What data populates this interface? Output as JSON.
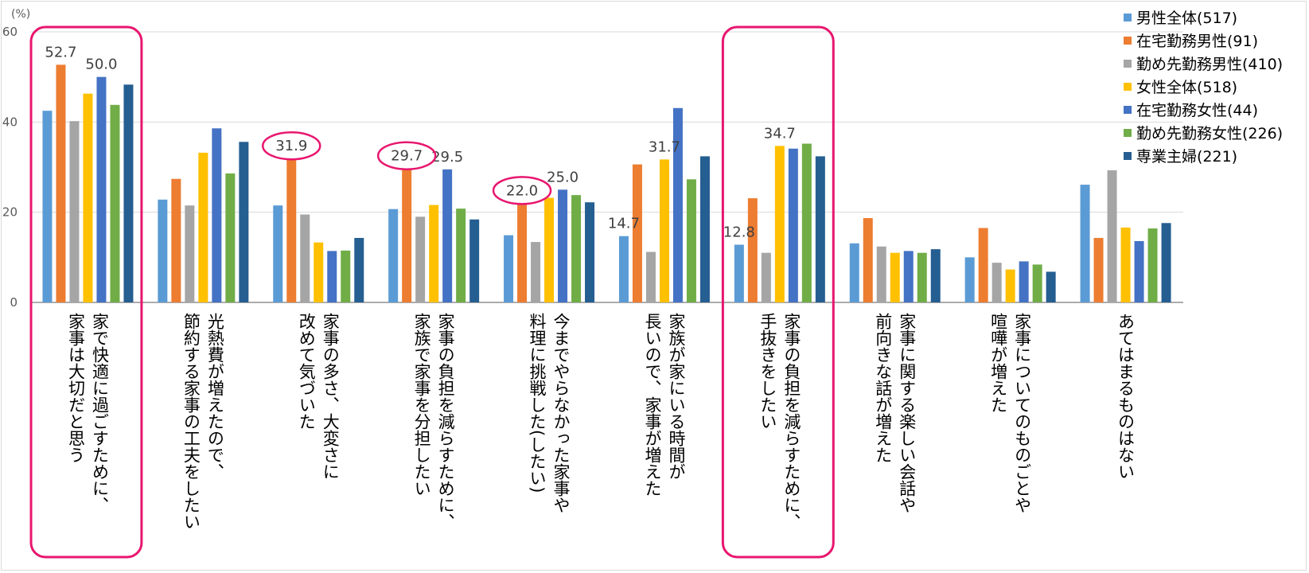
{
  "chart_data": {
    "type": "bar",
    "unit_label": "(%)",
    "ylim": [
      0,
      60
    ],
    "yticks": [
      0,
      20,
      40,
      60
    ],
    "grid": true,
    "legend_position": "top-right",
    "categories": [
      [
        "家で快適に過ごすために、",
        "家事は大切だと思う"
      ],
      [
        "光熱費が増えたので、",
        "節約する家事の工夫をしたい"
      ],
      [
        "家事の多さ、大変さに",
        "改めて気づいた"
      ],
      [
        "家事の負担を減らすために、",
        "家族で家事を分担したい"
      ],
      [
        "今までやらなかった家事や",
        "料理に挑戦した(したい)"
      ],
      [
        "家族が家にいる時間が",
        "長いので、家事が増えた"
      ],
      [
        "家事の負担を減らすために、",
        "手抜きをしたい"
      ],
      [
        "家事に関する楽しい会話や",
        "前向きな話が増えた"
      ],
      [
        "家事についてのものごとや",
        "喧嘩が増えた"
      ],
      [
        "あてはまるものはない"
      ]
    ],
    "series": [
      {
        "name": "男性全体(517)",
        "color": "#5B9BD5",
        "values": [
          42.5,
          22.8,
          21.5,
          20.7,
          14.9,
          14.7,
          12.8,
          13.1,
          10.0,
          26.1
        ]
      },
      {
        "name": "在宅勤務男性(91)",
        "color": "#ED7D31",
        "values": [
          52.7,
          27.4,
          31.9,
          29.7,
          22.0,
          30.6,
          23.1,
          18.7,
          16.5,
          14.3
        ]
      },
      {
        "name": "勤め先勤務男性(410)",
        "color": "#A5A5A5",
        "values": [
          40.2,
          21.5,
          19.5,
          19.0,
          13.4,
          11.2,
          11.0,
          12.4,
          8.8,
          29.3
        ]
      },
      {
        "name": "女性全体(518)",
        "color": "#FFC000",
        "values": [
          46.3,
          33.2,
          13.3,
          21.6,
          23.2,
          31.7,
          34.7,
          11.0,
          7.3,
          16.6
        ]
      },
      {
        "name": "在宅勤務女性(44)",
        "color": "#4472C4",
        "values": [
          50.0,
          38.6,
          11.4,
          29.5,
          25.0,
          43.1,
          34.1,
          11.4,
          9.1,
          13.6
        ]
      },
      {
        "name": "勤め先勤務女性(226)",
        "color": "#70AD47",
        "values": [
          43.8,
          28.6,
          11.5,
          20.8,
          23.8,
          27.3,
          35.2,
          11.0,
          8.4,
          16.4
        ]
      },
      {
        "name": "専業主婦(221)",
        "color": "#255E91",
        "values": [
          48.3,
          35.6,
          14.3,
          18.4,
          22.2,
          32.4,
          32.4,
          11.8,
          6.8,
          17.6
        ]
      }
    ],
    "data_labels": [
      {
        "category": 0,
        "series": 1,
        "text": "52.7"
      },
      {
        "category": 0,
        "series": 4,
        "text": "50.0"
      },
      {
        "category": 2,
        "series": 1,
        "text": "31.9"
      },
      {
        "category": 3,
        "series": 1,
        "text": "29.7"
      },
      {
        "category": 3,
        "series": 4,
        "text": "29.5"
      },
      {
        "category": 4,
        "series": 1,
        "text": "22.0"
      },
      {
        "category": 4,
        "series": 4,
        "text": "25.0"
      },
      {
        "category": 5,
        "series": 0,
        "text": "14.7"
      },
      {
        "category": 5,
        "series": 3,
        "text": "31.7"
      },
      {
        "category": 6,
        "series": 0,
        "text": "12.8"
      },
      {
        "category": 6,
        "series": 3,
        "text": "34.7"
      }
    ],
    "highlight_boxes": [
      0,
      6
    ],
    "highlight_circles": [
      {
        "category": 2,
        "series": 1
      },
      {
        "category": 3,
        "series": 1
      },
      {
        "category": 4,
        "series": 1
      }
    ],
    "highlight_color": "#E8166F",
    "axis_color": "#595959",
    "grid_color": "#D9D9D9"
  }
}
